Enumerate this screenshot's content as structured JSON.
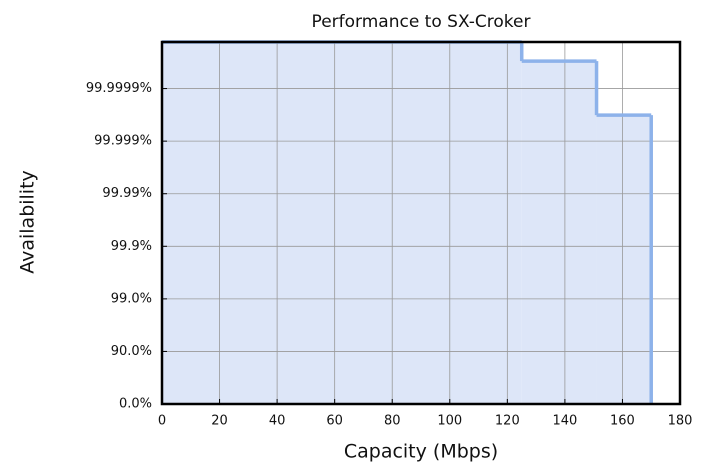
{
  "chart_data": {
    "type": "step",
    "title": "Performance to SX-Croker",
    "x_label": "Capacity (Mbps)",
    "y_label": "Availability",
    "x": [
      0,
      125,
      151,
      170
    ],
    "values": [
      99.999987,
      99.99997,
      99.99968,
      0
    ],
    "color": "#8db2ea",
    "fill_color": "#dde6f8",
    "xlim": [
      0,
      180
    ],
    "xticks": [
      0,
      20,
      40,
      60,
      80,
      100,
      120,
      140,
      160,
      180
    ],
    "yscale": "nines",
    "ylim": [
      0,
      99.999987
    ],
    "yticks": [
      {
        "value": 0,
        "label": "0.0%"
      },
      {
        "value": 90,
        "label": "90.0%"
      },
      {
        "value": 99,
        "label": "99.0%"
      },
      {
        "value": 99.9,
        "label": "99.9%"
      },
      {
        "value": 99.99,
        "label": "99.99%"
      },
      {
        "value": 99.999,
        "label": "99.999%"
      },
      {
        "value": 99.9999,
        "label": "99.9999%"
      }
    ],
    "grid": true
  }
}
